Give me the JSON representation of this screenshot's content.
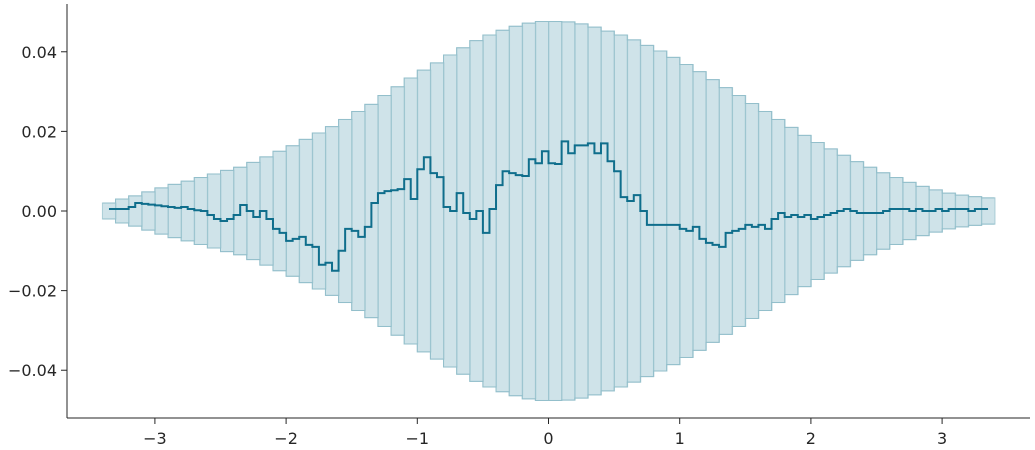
{
  "chart_data": {
    "type": "line",
    "style": "step",
    "title": "",
    "xlabel": "",
    "ylabel": "",
    "xlim": [
      -3.67,
      3.67
    ],
    "ylim": [
      -0.052,
      0.052
    ],
    "grid": false,
    "legend": "none",
    "colors": {
      "line": "#0f6e8c",
      "band": "#a3c9d4"
    },
    "x_ticks": [
      {
        "value": -3,
        "label": "−3"
      },
      {
        "value": -2,
        "label": "−2"
      },
      {
        "value": -1,
        "label": "−1"
      },
      {
        "value": 0,
        "label": "0"
      },
      {
        "value": 1,
        "label": "1"
      },
      {
        "value": 2,
        "label": "2"
      },
      {
        "value": 3,
        "label": "3"
      }
    ],
    "y_ticks": [
      {
        "value": -0.04,
        "label": "−0.04"
      },
      {
        "value": -0.02,
        "label": "−0.02"
      },
      {
        "value": 0.0,
        "label": "0.00"
      },
      {
        "value": 0.02,
        "label": "0.02"
      },
      {
        "value": 0.04,
        "label": "0.04"
      }
    ],
    "band_x": [
      -3.35,
      -3.25,
      -3.15,
      -3.05,
      -2.95,
      -2.85,
      -2.75,
      -2.65,
      -2.55,
      -2.45,
      -2.35,
      -2.25,
      -2.15,
      -2.05,
      -1.95,
      -1.85,
      -1.75,
      -1.65,
      -1.55,
      -1.45,
      -1.35,
      -1.25,
      -1.15,
      -1.05,
      -0.95,
      -0.85,
      -0.75,
      -0.65,
      -0.55,
      -0.45,
      -0.35,
      -0.25,
      -0.15,
      -0.05,
      0.05,
      0.15,
      0.25,
      0.35,
      0.45,
      0.55,
      0.65,
      0.75,
      0.85,
      0.95,
      1.05,
      1.15,
      1.25,
      1.35,
      1.45,
      1.55,
      1.65,
      1.75,
      1.85,
      1.95,
      2.05,
      2.15,
      2.25,
      2.35,
      2.45,
      2.55,
      2.65,
      2.75,
      2.85,
      2.95,
      3.05,
      3.15,
      3.25,
      3.35
    ],
    "band_halfwidth": [
      0.002,
      0.003,
      0.0038,
      0.0048,
      0.0058,
      0.0067,
      0.0075,
      0.0084,
      0.0093,
      0.0102,
      0.011,
      0.0122,
      0.0136,
      0.015,
      0.0164,
      0.018,
      0.0196,
      0.0212,
      0.023,
      0.025,
      0.0268,
      0.029,
      0.0312,
      0.0334,
      0.0354,
      0.0372,
      0.0392,
      0.041,
      0.0428,
      0.0442,
      0.0454,
      0.0464,
      0.0472,
      0.0476,
      0.0476,
      0.0475,
      0.047,
      0.0462,
      0.0452,
      0.0442,
      0.043,
      0.0416,
      0.0402,
      0.0386,
      0.0368,
      0.035,
      0.033,
      0.031,
      0.029,
      0.027,
      0.025,
      0.023,
      0.021,
      0.019,
      0.0172,
      0.0156,
      0.014,
      0.0124,
      0.011,
      0.0096,
      0.0084,
      0.0072,
      0.0062,
      0.0053,
      0.0045,
      0.004,
      0.0036,
      0.0033
    ],
    "series": [
      {
        "x": [
          -3.35,
          -3.3,
          -3.25,
          -3.2,
          -3.15,
          -3.1,
          -3.05,
          -3.0,
          -2.95,
          -2.9,
          -2.85,
          -2.8,
          -2.75,
          -2.7,
          -2.65,
          -2.6,
          -2.55,
          -2.5,
          -2.45,
          -2.4,
          -2.35,
          -2.3,
          -2.25,
          -2.2,
          -2.15,
          -2.1,
          -2.05,
          -2.0,
          -1.95,
          -1.9,
          -1.85,
          -1.8,
          -1.75,
          -1.7,
          -1.65,
          -1.6,
          -1.55,
          -1.5,
          -1.45,
          -1.4,
          -1.35,
          -1.3,
          -1.25,
          -1.2,
          -1.15,
          -1.1,
          -1.05,
          -1.0,
          -0.95,
          -0.9,
          -0.85,
          -0.8,
          -0.75,
          -0.7,
          -0.65,
          -0.6,
          -0.55,
          -0.5,
          -0.45,
          -0.4,
          -0.35,
          -0.3,
          -0.25,
          -0.2,
          -0.15,
          -0.1,
          -0.05,
          0.0,
          0.05,
          0.1,
          0.15,
          0.2,
          0.25,
          0.3,
          0.35,
          0.4,
          0.45,
          0.5,
          0.55,
          0.6,
          0.65,
          0.7,
          0.75,
          0.8,
          0.85,
          0.9,
          0.95,
          1.0,
          1.05,
          1.1,
          1.15,
          1.2,
          1.25,
          1.3,
          1.35,
          1.4,
          1.45,
          1.5,
          1.55,
          1.6,
          1.65,
          1.7,
          1.75,
          1.8,
          1.85,
          1.9,
          1.95,
          2.0,
          2.05,
          2.1,
          2.15,
          2.2,
          2.25,
          2.3,
          2.35,
          2.4,
          2.45,
          2.5,
          2.55,
          2.6,
          2.65,
          2.7,
          2.75,
          2.8,
          2.85,
          2.9,
          2.95,
          3.0,
          3.05,
          3.1,
          3.15,
          3.2,
          3.25,
          3.3,
          3.35
        ],
        "y": [
          0.0005,
          0.0005,
          0.0005,
          0.001,
          0.002,
          0.0018,
          0.0016,
          0.0014,
          0.0012,
          0.001,
          0.0008,
          0.001,
          0.0005,
          0.0002,
          0.0,
          -0.001,
          -0.002,
          -0.0025,
          -0.002,
          -0.001,
          0.0015,
          0.0,
          -0.0015,
          0.0,
          -0.002,
          -0.0045,
          -0.0055,
          -0.0075,
          -0.007,
          -0.0065,
          -0.0085,
          -0.009,
          -0.0135,
          -0.013,
          -0.015,
          -0.01,
          -0.0045,
          -0.005,
          -0.0065,
          -0.004,
          0.002,
          0.0045,
          0.005,
          0.0052,
          0.0055,
          0.008,
          0.003,
          0.0105,
          0.0135,
          0.0095,
          0.0085,
          0.001,
          0.0,
          0.0045,
          -0.0005,
          -0.002,
          0.0,
          -0.0055,
          0.0005,
          0.0065,
          0.01,
          0.0095,
          0.009,
          0.0088,
          0.013,
          0.012,
          0.015,
          0.012,
          0.0118,
          0.0175,
          0.0145,
          0.0165,
          0.0165,
          0.017,
          0.0145,
          0.017,
          0.0125,
          0.01,
          0.0035,
          0.0025,
          0.004,
          0.0,
          -0.0035,
          -0.0035,
          -0.0035,
          -0.0035,
          -0.0035,
          -0.0045,
          -0.005,
          -0.004,
          -0.007,
          -0.008,
          -0.0085,
          -0.009,
          -0.0055,
          -0.005,
          -0.0045,
          -0.0035,
          -0.004,
          -0.0035,
          -0.0045,
          -0.002,
          -0.0005,
          -0.0015,
          -0.001,
          -0.0015,
          -0.001,
          -0.002,
          -0.0015,
          -0.001,
          -0.0005,
          0.0,
          0.0005,
          0.0,
          -0.0005,
          -0.0005,
          -0.0005,
          -0.0005,
          0.0,
          0.0005,
          0.0005,
          0.0005,
          0.0,
          0.0005,
          0.0,
          0.0,
          0.0005,
          0.0,
          0.0005,
          0.0005,
          0.0005,
          0.0,
          0.0005,
          0.0005,
          0.0005
        ]
      }
    ]
  }
}
